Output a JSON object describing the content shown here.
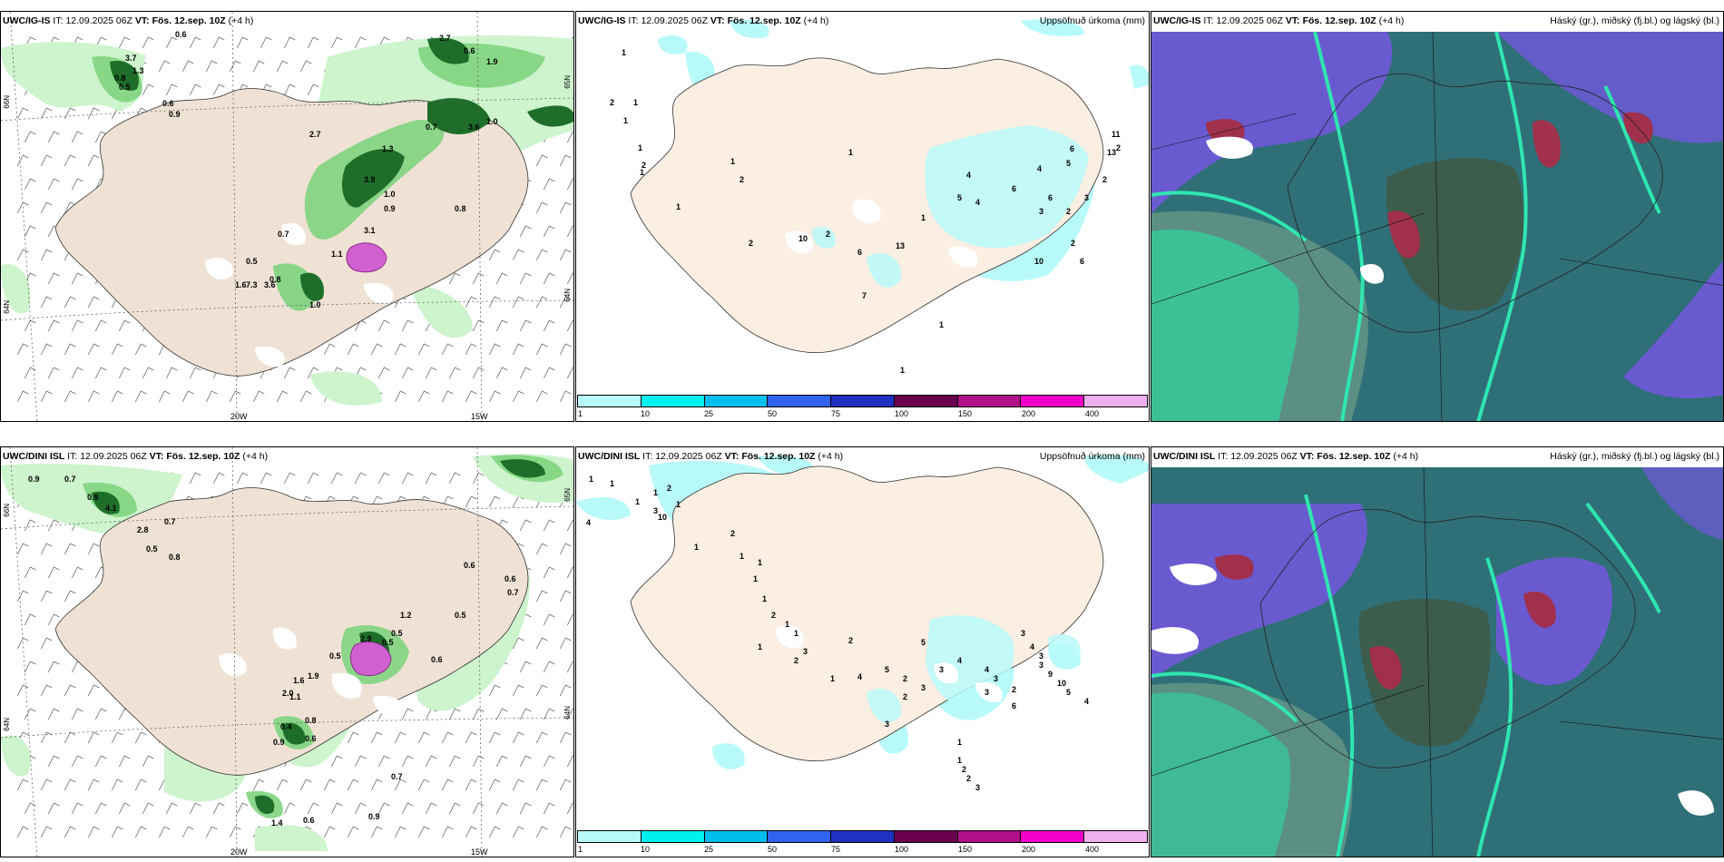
{
  "rows": [
    {
      "model": "UWC/IG-IS",
      "it_label": "IT:",
      "it_value": "12.09.2025 06Z",
      "vt_label": "VT:",
      "vt_value": "Fös. 12.sep. 10Z",
      "lead": "(+4 h)"
    },
    {
      "model": "UWC/DINI ISL",
      "it_label": "IT:",
      "it_value": "12.09.2025 06Z",
      "vt_label": "VT:",
      "vt_value": "Fös. 12.sep. 10Z",
      "lead": "(+4 h)"
    }
  ],
  "titles": {
    "precip": "Uppsöfnuð úrkoma (mm)",
    "clouds": "Háský (gr.), miðský (fj.bl.) og lágský (bl.)"
  },
  "lon_labels": [
    "20W",
    "15W"
  ],
  "lat_labels": [
    "66N",
    "64N",
    "65N"
  ],
  "colorbar": {
    "ticks": [
      "1",
      "10",
      "25",
      "50",
      "75",
      "100",
      "150",
      "200",
      "400"
    ],
    "colors": [
      "#b8fafa",
      "#00f0f0",
      "#00bfef",
      "#3064f0",
      "#2030c0",
      "#6a0050",
      "#b0108a",
      "#f000c8",
      "#f0b0f0"
    ]
  },
  "colors": {
    "land": "#efe2d5",
    "land_precip": "#fbeee2",
    "precip_light": "#cdf4cd",
    "precip_mid": "#7fd47f",
    "precip_dark": "#1e6e2a",
    "cloud_high_purple": "#6a5ad0",
    "cloud_teal": "#2f6f77",
    "cloud_green": "#2fd6a0",
    "cloud_dark": "#3c5c4c",
    "cloud_red": "#a0304c"
  },
  "panel1_values_top": [
    "0.6",
    "2.7",
    "0.6",
    "1.9",
    "3.7",
    "1.3",
    "0.8",
    "0.5",
    "0.6",
    "0.9",
    "3.6",
    "2.7",
    "0.7",
    "1.3",
    "3.9",
    "1.0",
    "0.9",
    "3.1",
    "0.5",
    "0.8",
    "0.7",
    "0.8",
    "1.0",
    "1.6",
    "7.3",
    "3.6",
    "1.1",
    "1.0"
  ],
  "panel1_values_bottom": [
    "0.9",
    "0.7",
    "0.9",
    "4.1",
    "0.7",
    "2.8",
    "0.8",
    "0.5",
    "0.6",
    "0.6",
    "0.7",
    "0.5",
    "0.5",
    "1.2",
    "0.5",
    "2.9",
    "0.5",
    "0.6",
    "1.9",
    "1.1",
    "0.8",
    "0.6",
    "0.9",
    "0.7",
    "0.9",
    "0.6",
    "1.4",
    "1.6",
    "2.0",
    "0.4"
  ],
  "panel2_values_top": [
    "1",
    "2",
    "1",
    "1",
    "1",
    "2",
    "1",
    "1",
    "1",
    "2",
    "2",
    "10",
    "2",
    "1",
    "7",
    "13",
    "1",
    "6",
    "4",
    "5",
    "4",
    "6",
    "3",
    "6",
    "4",
    "2",
    "3",
    "13",
    "11",
    "2",
    "2",
    "6",
    "5",
    "10",
    "2",
    "6",
    "1",
    "1"
  ],
  "panel2_values_bottom": [
    "1",
    "4",
    "1",
    "1",
    "1",
    "3",
    "10",
    "2",
    "1",
    "1",
    "2",
    "1",
    "1",
    "1",
    "1",
    "2",
    "1",
    "1",
    "2",
    "1",
    "3",
    "1",
    "2",
    "4",
    "5",
    "2",
    "5",
    "4",
    "4",
    "3",
    "3",
    "2",
    "6",
    "3",
    "4",
    "3",
    "3",
    "9",
    "10",
    "5",
    "4",
    "1",
    "1",
    "2",
    "2",
    "3",
    "3",
    "3",
    "2",
    "3"
  ]
}
